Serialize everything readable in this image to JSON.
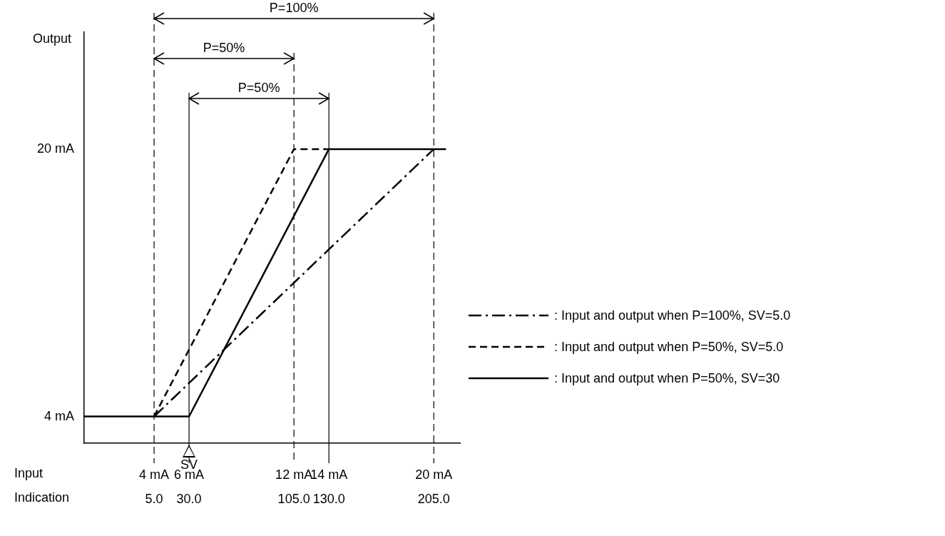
{
  "chart_data": {
    "type": "line",
    "xlabel": "Input",
    "x2label": "Indication",
    "ylabel": "Output",
    "xlim": [
      0,
      21.5
    ],
    "xticks": [
      {
        "value": 4,
        "label": "4 mA"
      },
      {
        "value": 6,
        "label": "6 mA"
      },
      {
        "value": 12,
        "label": "12 mA"
      },
      {
        "value": 14,
        "label": "14 mA"
      },
      {
        "value": 20,
        "label": "20 mA"
      }
    ],
    "x2lim": [
      -45,
      223.75
    ],
    "x2ticks": [
      {
        "value": 5,
        "label": "5.0"
      },
      {
        "value": 30,
        "label": "30.0"
      },
      {
        "value": 105,
        "label": "105.0"
      },
      {
        "value": 130,
        "label": "130.0"
      },
      {
        "value": 205,
        "label": "205.0"
      }
    ],
    "ylim": [
      2.4,
      27
    ],
    "yticks": [
      {
        "value": 4,
        "label": "4 mA"
      },
      {
        "value": 20,
        "label": "20 mA"
      }
    ],
    "grid": false,
    "legend": "right",
    "series": [
      {
        "name": ": Input and output when P=100%, SV=5.0",
        "color": "#000000",
        "line_style": "dashdot",
        "x": [
          4,
          20
        ],
        "values": [
          4,
          20
        ]
      },
      {
        "name": ": Input and output when P=50%, SV=5.0",
        "color": "#000000",
        "line_style": "dashed",
        "x": [
          4,
          12,
          14
        ],
        "values": [
          4,
          20,
          20
        ]
      },
      {
        "name": ": Input and output when P=50%, SV=30",
        "color": "#000000",
        "line_style": "solid",
        "x": [
          0,
          6,
          14,
          20.7
        ],
        "values": [
          4,
          4,
          20,
          20
        ]
      }
    ],
    "ref_lines": [
      {
        "axis": "x",
        "value": 4,
        "color": "#000000",
        "line_style": "dashed"
      },
      {
        "axis": "x",
        "value": 6,
        "color": "#000000",
        "line_style": "solid"
      },
      {
        "axis": "x",
        "value": 12,
        "color": "#000000",
        "line_style": "dashed"
      },
      {
        "axis": "x",
        "value": 14,
        "color": "#000000",
        "line_style": "solid"
      },
      {
        "axis": "x",
        "value": 20,
        "color": "#000000",
        "line_style": "dashed"
      }
    ],
    "annotations": [
      "P=100%",
      "P=50%",
      "P=50%",
      {
        "text": "SV",
        "x": 6
      }
    ]
  }
}
